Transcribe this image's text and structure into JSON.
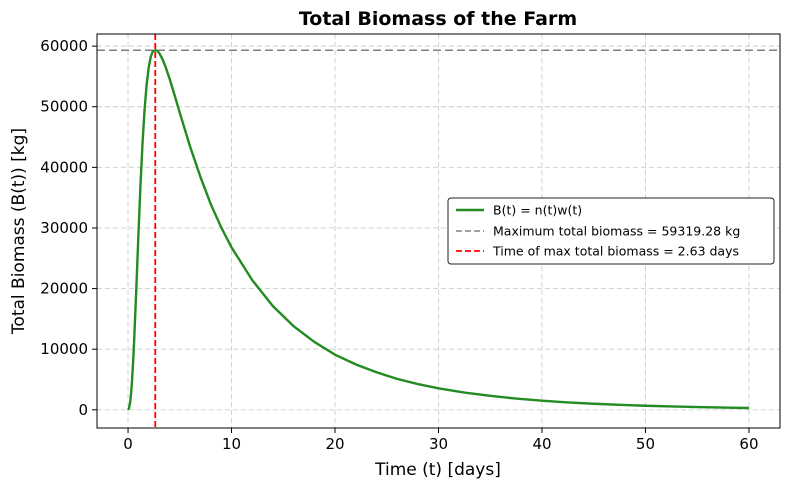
{
  "chart_data": {
    "type": "line",
    "title": "Total Biomass of the Farm",
    "xlabel": "Time (t) [days]",
    "ylabel": "Total Biomass (B(t)) [kg]",
    "xlim": [
      -3,
      63
    ],
    "ylim": [
      -3000,
      62000
    ],
    "xticks": [
      0,
      10,
      20,
      30,
      40,
      50,
      60
    ],
    "yticks": [
      0,
      10000,
      20000,
      30000,
      40000,
      50000,
      60000
    ],
    "grid": true,
    "legend_position": "center-right",
    "series": [
      {
        "name": "B(t) = n(t)w(t)",
        "color": "#228b22",
        "style": "solid",
        "x": [
          0,
          0.1,
          0.2,
          0.3,
          0.4,
          0.5,
          0.6,
          0.8,
          1.0,
          1.2,
          1.4,
          1.6,
          1.8,
          2.0,
          2.2,
          2.4,
          2.63,
          2.8,
          3.0,
          3.3,
          3.6,
          4.0,
          4.5,
          5.0,
          6.0,
          7.0,
          8.0,
          9.0,
          10.0,
          12.0,
          14.0,
          16.0,
          18.0,
          20.0,
          22.0,
          24.0,
          26.0,
          28.0,
          30.0,
          32.5,
          35.0,
          37.5,
          40.0,
          42.5,
          45.0,
          47.5,
          50.0,
          52.5,
          55.0,
          57.5,
          60.0
        ],
        "y": [
          0,
          300,
          1200,
          2800,
          5200,
          8200,
          11800,
          20000,
          28800,
          37000,
          44000,
          49600,
          53700,
          56500,
          58300,
          59150,
          59319.28,
          59250,
          58900,
          57950,
          56700,
          54700,
          51900,
          49000,
          43400,
          38400,
          33900,
          30100,
          26800,
          21400,
          17100,
          13800,
          11200,
          9100,
          7500,
          6200,
          5100,
          4250,
          3550,
          2850,
          2300,
          1850,
          1500,
          1220,
          1000,
          820,
          670,
          550,
          450,
          370,
          300
        ]
      },
      {
        "name": "Maximum total biomass = 59319.28 kg",
        "color": "#808080",
        "style": "dashed",
        "orientation": "horizontal",
        "value": 59319.28
      },
      {
        "name": "Time of max total biomass = 2.63 days",
        "color": "#ff0000",
        "style": "dashed",
        "orientation": "vertical",
        "value": 2.63
      }
    ]
  }
}
